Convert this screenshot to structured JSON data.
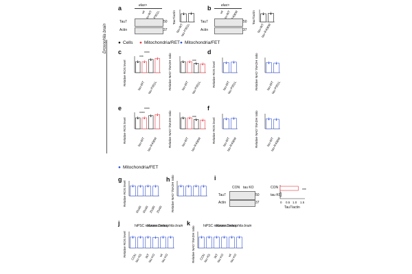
{
  "side_label": "Drosophila brain",
  "legend_top": {
    "cells": "Cells",
    "ret": "Mitochondria/RET",
    "fet": "Mitochondria/FET"
  },
  "legend_mid": {
    "fet": "Mitochondria/FET"
  },
  "colors": {
    "cells": "#111111",
    "ret": "#e8323c",
    "fet": "#2f4fd8",
    "bar": "#ffffff",
    "blot": "#e8e8e8"
  },
  "panels": {
    "a": {
      "letter": "a",
      "header": "elav>",
      "lanes": [
        "wt",
        "tau-WT",
        "tau-P301L"
      ],
      "rows": [
        "Tau7",
        "Actin"
      ],
      "mw": [
        "50",
        "37"
      ],
      "ylabel": "Tau7/actin",
      "xticks": [
        "tau-WT",
        "tau-P301L"
      ]
    },
    "b": {
      "letter": "b",
      "header": "elav>",
      "lanes": [
        "wt",
        "tau-WT",
        "tau-R406W"
      ],
      "rows": [
        "Tau7",
        "Actin"
      ],
      "mw": [
        "50",
        "37"
      ],
      "ylabel": "Tau7/actin",
      "xticks": [
        "tau-WT",
        "tau-R406W"
      ]
    },
    "c": {
      "letter": "c",
      "y1": "Relative ROS level",
      "y2": "Relative NAD⁺/NADH ratio",
      "xticks": [
        "tau-WT",
        "tau-P301L"
      ],
      "sig1": [
        "***",
        "****"
      ],
      "sig2": [
        "*",
        "***"
      ]
    },
    "d": {
      "letter": "d",
      "y1": "Relative ROS level",
      "y2": "Relative NAD⁺/NADH ratio",
      "xticks": [
        "tau-WT",
        "tau-P301L"
      ]
    },
    "e": {
      "letter": "e",
      "y1": "Relative ROS level",
      "y2": "Relative NAD⁺/NADH ratio",
      "xticks": [
        "tau-WT",
        "tau-R406W"
      ],
      "sig1": [
        "****",
        "****"
      ],
      "sig2": [
        "**",
        "***"
      ]
    },
    "f": {
      "letter": "f",
      "y1": "Relative ROS level",
      "y2": "Relative NAD⁺/NADH ratio",
      "xticks": [
        "tau-WT",
        "tau-R406W"
      ]
    },
    "g": {
      "letter": "g",
      "ylabel": "Relative ROS level",
      "xticks": [
        "0N4R",
        "0N4R",
        "2N3R",
        "2N4R"
      ]
    },
    "h": {
      "letter": "h",
      "ylabel": "Relative NAD⁺/NADH ratio",
      "xticks": [
        "0N4R",
        "0N4R",
        "2N3R",
        "2N4R"
      ]
    },
    "i": {
      "letter": "i",
      "lanes": [
        "CON",
        "tau KO"
      ],
      "rows": [
        "Tau7",
        "Actin"
      ],
      "mw": [
        "50",
        "37"
      ],
      "rows2": [
        "CON",
        "tau KO"
      ],
      "sig": "***",
      "xticks": [
        "0",
        "0.5",
        "1.0",
        "1.5"
      ],
      "xlabel": "Tau7/actin"
    },
    "j": {
      "letter": "j",
      "ylabel": "Relative ROS level",
      "groups": [
        "hiPSC neurons",
        "Mouse cortex",
        "Drosophila brain"
      ],
      "xticks": [
        "CON",
        "tau KD",
        "WT",
        "tau KO",
        "wt",
        "tau KO"
      ]
    },
    "k": {
      "letter": "k",
      "ylabel": "Relative NAD⁺/NADH ratio",
      "groups": [
        "hiPSC neurons",
        "Mouse cortex",
        "Drosophila brain"
      ],
      "xticks": [
        "CON",
        "tau KD",
        "WT",
        "tau KO",
        "wt",
        "tau KO"
      ]
    }
  },
  "chart_data": [
    {
      "panel": "a",
      "type": "bar",
      "categories": [
        "tau-WT",
        "tau-P301L"
      ],
      "values": [
        1.0,
        1.05
      ],
      "ylim": [
        0,
        1.5
      ]
    },
    {
      "panel": "b",
      "type": "bar",
      "categories": [
        "tau-WT",
        "tau-R406W"
      ],
      "values": [
        1.0,
        1.05
      ],
      "ylim": [
        0,
        1.5
      ]
    },
    {
      "panel": "c-ros",
      "type": "bar",
      "categories": [
        "tau-WT",
        "tau-P301L"
      ],
      "ylim": [
        0,
        1.5
      ],
      "series": [
        {
          "name": "Cells",
          "values": [
            1.0,
            1.2
          ]
        },
        {
          "name": "Mitochondria/RET",
          "values": [
            1.0,
            1.3
          ]
        }
      ]
    },
    {
      "panel": "c-nad",
      "type": "bar",
      "categories": [
        "tau-WT",
        "tau-P301L"
      ],
      "ylim": [
        0,
        1.5
      ],
      "series": [
        {
          "name": "Cells",
          "values": [
            1.0,
            0.85
          ]
        },
        {
          "name": "Mitochondria/RET",
          "values": [
            1.0,
            0.8
          ]
        }
      ]
    },
    {
      "panel": "d-ros",
      "type": "bar",
      "categories": [
        "tau-WT",
        "tau-P301L"
      ],
      "ylim": [
        0,
        1.5
      ],
      "series": [
        {
          "name": "Mitochondria/FET",
          "values": [
            1.0,
            1.05
          ]
        }
      ]
    },
    {
      "panel": "d-nad",
      "type": "bar",
      "categories": [
        "tau-WT",
        "tau-P301L"
      ],
      "ylim": [
        0,
        1.5
      ],
      "series": [
        {
          "name": "Mitochondria/FET",
          "values": [
            1.0,
            0.95
          ]
        }
      ]
    },
    {
      "panel": "e-ros",
      "type": "bar",
      "categories": [
        "tau-WT",
        "tau-R406W"
      ],
      "ylim": [
        0,
        1.5
      ],
      "series": [
        {
          "name": "Cells",
          "values": [
            1.0,
            1.2
          ]
        },
        {
          "name": "Mitochondria/RET",
          "values": [
            1.0,
            1.3
          ]
        }
      ]
    },
    {
      "panel": "e-nad",
      "type": "bar",
      "categories": [
        "tau-WT",
        "tau-R406W"
      ],
      "ylim": [
        0,
        1.5
      ],
      "series": [
        {
          "name": "Cells",
          "values": [
            1.0,
            0.85
          ]
        },
        {
          "name": "Mitochondria/RET",
          "values": [
            1.0,
            0.8
          ]
        }
      ]
    },
    {
      "panel": "f-ros",
      "type": "bar",
      "categories": [
        "tau-WT",
        "tau-R406W"
      ],
      "ylim": [
        0,
        1.5
      ],
      "series": [
        {
          "name": "Mitochondria/FET",
          "values": [
            1.0,
            1.05
          ]
        }
      ]
    },
    {
      "panel": "f-nad",
      "type": "bar",
      "categories": [
        "tau-WT",
        "tau-R406W"
      ],
      "ylim": [
        0,
        1.5
      ],
      "series": [
        {
          "name": "Mitochondria/FET",
          "values": [
            1.0,
            0.95
          ]
        }
      ]
    },
    {
      "panel": "g",
      "type": "bar",
      "categories": [
        "0N4R",
        "0N4R",
        "2N3R",
        "2N4R"
      ],
      "values": [
        1.0,
        0.98,
        1.0,
        0.98
      ],
      "ylim": [
        0,
        1.5
      ]
    },
    {
      "panel": "h",
      "type": "bar",
      "categories": [
        "0N4R",
        "0N4R",
        "2N3R",
        "2N4R"
      ],
      "values": [
        1.0,
        0.98,
        1.0,
        0.98
      ],
      "ylim": [
        0,
        1.5
      ]
    },
    {
      "panel": "i",
      "type": "bar",
      "categories": [
        "CON",
        "tau KO"
      ],
      "values": [
        1.1,
        0.05
      ],
      "xlim": [
        0,
        1.5
      ]
    },
    {
      "panel": "j",
      "type": "bar",
      "categories": [
        "CON",
        "tau KD",
        "WT",
        "tau KO",
        "wt",
        "tau KO"
      ],
      "values": [
        1.0,
        1.0,
        1.0,
        0.98,
        1.0,
        1.0
      ],
      "ylim": [
        0,
        1.5
      ]
    },
    {
      "panel": "k",
      "type": "bar",
      "categories": [
        "CON",
        "tau KD",
        "WT",
        "tau KO",
        "wt",
        "tau KO"
      ],
      "values": [
        1.0,
        1.0,
        1.0,
        1.0,
        1.0,
        1.0
      ],
      "ylim": [
        0,
        1.5
      ]
    }
  ]
}
